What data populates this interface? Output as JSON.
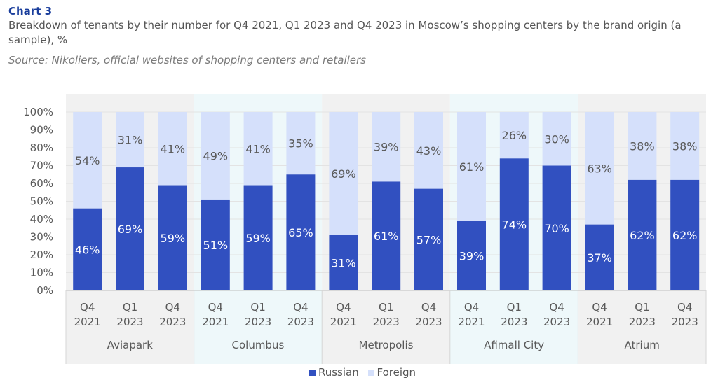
{
  "header": {
    "chart_label": "Chart 3",
    "subtitle": "Breakdown of tenants by their number for Q4 2021, Q1 2023 and Q4 2023 in Moscow’s shopping centers by the brand origin (a sample), %",
    "source": "Source: Nikoliers, official websites of shopping centers and retailers"
  },
  "colors": {
    "russian": "#3150c0",
    "foreign": "#d5e0fb",
    "group_band_a": "#f1f1f1",
    "group_band_b": "#eef8fa"
  },
  "chart_data": {
    "type": "bar",
    "stacked": true,
    "ylim": [
      0,
      100
    ],
    "yticks": [
      "0%",
      "10%",
      "20%",
      "30%",
      "40%",
      "50%",
      "60%",
      "70%",
      "80%",
      "90%",
      "100%"
    ],
    "groups": [
      "Aviapark",
      "Columbus",
      "Metropolis",
      "Afimall City",
      "Atrium"
    ],
    "periods": [
      [
        "Q4",
        "2021"
      ],
      [
        "Q1",
        "2023"
      ],
      [
        "Q4",
        "2023"
      ]
    ],
    "series": [
      {
        "name": "Russian",
        "values": [
          46,
          69,
          59,
          51,
          59,
          65,
          31,
          61,
          57,
          39,
          74,
          70,
          37,
          62,
          62
        ]
      },
      {
        "name": "Foreign",
        "values": [
          54,
          31,
          41,
          49,
          41,
          35,
          69,
          39,
          43,
          61,
          26,
          30,
          63,
          38,
          38
        ]
      }
    ]
  }
}
